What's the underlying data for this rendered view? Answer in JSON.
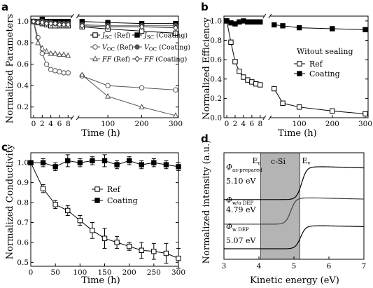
{
  "panels": [
    {
      "id": "a",
      "label": "a",
      "xlabel": "Time (h)",
      "ylabel": "Normalized Parameters",
      "xticks": [
        "0",
        "2",
        "4",
        "6",
        "8",
        "100",
        "200",
        "300"
      ],
      "yticks": [
        "0.2",
        "0.4",
        "0.6",
        "0.8",
        "1.0"
      ],
      "legend": [
        {
          "sym": "J",
          "sub": "SC",
          "tail": " (Ref)",
          "marker": "open-square"
        },
        {
          "sym": "J",
          "sub": "SC",
          "tail": " (Coating)",
          "marker": "filled-square"
        },
        {
          "sym": "V",
          "sub": "OC",
          "tail": " (Ref)",
          "marker": "open-circle"
        },
        {
          "sym": "V",
          "sub": "OC",
          "tail": " (Coating)",
          "marker": "filled-circle"
        },
        {
          "sym": "FF",
          "sub": "",
          "tail": " (Ref)",
          "marker": "open-triangle"
        },
        {
          "sym": "FF",
          "sub": "",
          "tail": " (Coating)",
          "marker": "open-diamond"
        }
      ]
    },
    {
      "id": "b",
      "label": "b",
      "xlabel": "Time (h)",
      "ylabel": "Normalized Efficiency",
      "xticks": [
        "0",
        "2",
        "4",
        "6",
        "8",
        "100",
        "200",
        "300"
      ],
      "yticks": [
        "0.0",
        "0.2",
        "0.4",
        "0.6",
        "0.8",
        "1.0"
      ],
      "legend_title": "Witout sealing",
      "legend": [
        {
          "text": "Ref",
          "marker": "open-square"
        },
        {
          "text": "Coating",
          "marker": "filled-square"
        }
      ]
    },
    {
      "id": "c",
      "label": "c",
      "xlabel": "Time (h)",
      "ylabel": "Normalized Conductivity",
      "xticks": [
        "0",
        "50",
        "100",
        "150",
        "200",
        "250",
        "300"
      ],
      "yticks": [
        "0.5",
        "0.6",
        "0.7",
        "0.8",
        "0.9",
        "1.0"
      ],
      "legend": [
        {
          "text": "Ref",
          "marker": "open-square"
        },
        {
          "text": "Coating",
          "marker": "filled-square"
        }
      ]
    },
    {
      "id": "d",
      "label": "d",
      "xlabel": "Kinetic energy (eV)",
      "ylabel": "Normalized intensity (a.u.)",
      "xticks": [
        "3",
        "4",
        "5",
        "6",
        "7"
      ],
      "band_label": "c-Si",
      "ec_label": "E",
      "ec_sub": "c",
      "ev_label": "E",
      "ev_sub": "v",
      "curves": [
        {
          "phi": "Φ",
          "sub": "as-prepared",
          "value": "5.10 eV"
        },
        {
          "phi": "Φ",
          "sub": "w/o DEP",
          "value": "4.79 eV"
        },
        {
          "phi": "Φ",
          "sub": "w DEP",
          "value": "5.07 eV"
        }
      ]
    }
  ],
  "chart_data": [
    {
      "type": "line",
      "panel": "a",
      "xlabel": "Time (h)",
      "ylabel": "Normalized Parameters",
      "ylim": [
        0.1,
        1.05
      ],
      "x_early": [
        0,
        1,
        2,
        3,
        4,
        5,
        6,
        7,
        8
      ],
      "x_late": [
        24,
        100,
        200,
        300
      ],
      "series": [
        {
          "name": "JSC (Ref)",
          "marker": "open-square",
          "early": [
            1.0,
            0.99,
            0.98,
            0.97,
            0.96,
            0.96,
            0.96,
            0.96,
            0.96
          ],
          "late": [
            0.95,
            0.93,
            0.91,
            0.89
          ]
        },
        {
          "name": "JSC (Coating)",
          "marker": "filled-square",
          "early": [
            1.0,
            1.0,
            1.02,
            1.0,
            1.0,
            1.0,
            1.0,
            1.0,
            1.0
          ],
          "late": [
            1.0,
            0.99,
            0.98,
            0.98
          ]
        },
        {
          "name": "VOC (Ref)",
          "marker": "open-circle",
          "early": [
            1.0,
            0.85,
            0.7,
            0.6,
            0.55,
            0.54,
            0.53,
            0.52,
            0.52
          ],
          "late": [
            0.49,
            0.4,
            0.38,
            0.36
          ]
        },
        {
          "name": "VOC (Coating)",
          "marker": "filled-circle",
          "early": [
            1.0,
            1.0,
            1.0,
            0.99,
            0.99,
            0.98,
            0.98,
            0.98,
            0.98
          ],
          "late": [
            0.97,
            0.96,
            0.96,
            0.96
          ]
        },
        {
          "name": "FF (Ref)",
          "marker": "open-triangle",
          "early": [
            1.0,
            0.8,
            0.75,
            0.72,
            0.7,
            0.7,
            0.69,
            0.69,
            0.68
          ],
          "late": [
            0.5,
            0.3,
            0.2,
            0.12
          ]
        },
        {
          "name": "FF (Coating)",
          "marker": "open-diamond",
          "early": [
            1.0,
            0.99,
            0.99,
            0.98,
            0.98,
            0.98,
            0.97,
            0.97,
            0.97
          ],
          "late": [
            0.96,
            0.95,
            0.95,
            0.94
          ]
        }
      ]
    },
    {
      "type": "line",
      "panel": "b",
      "xlabel": "Time (h)",
      "ylabel": "Normalized Efficiency",
      "ylim": [
        0.0,
        1.05
      ],
      "x_early": [
        0,
        1,
        2,
        3,
        4,
        5,
        6,
        7,
        8
      ],
      "x_late": [
        24,
        50,
        100,
        200,
        300
      ],
      "series": [
        {
          "name": "Ref",
          "marker": "open-square",
          "early": [
            1.0,
            0.78,
            0.58,
            0.48,
            0.42,
            0.39,
            0.37,
            0.35,
            0.34
          ],
          "late": [
            0.3,
            0.15,
            0.11,
            0.07,
            0.04
          ]
        },
        {
          "name": "Coating",
          "marker": "filled-square",
          "early": [
            1.0,
            0.98,
            0.97,
            0.99,
            1.0,
            0.99,
            0.99,
            0.99,
            0.99
          ],
          "late": [
            0.96,
            0.95,
            0.93,
            0.92,
            0.91
          ]
        }
      ]
    },
    {
      "type": "line",
      "panel": "c",
      "xlabel": "Time (h)",
      "ylabel": "Normalized Conductivity",
      "xlim": [
        0,
        300
      ],
      "ylim": [
        0.48,
        1.05
      ],
      "series": [
        {
          "name": "Ref",
          "marker": "open-square",
          "x": [
            0,
            25,
            50,
            75,
            100,
            125,
            150,
            175,
            200,
            225,
            250,
            275,
            300
          ],
          "y": [
            1.0,
            0.87,
            0.79,
            0.76,
            0.71,
            0.66,
            0.62,
            0.6,
            0.58,
            0.56,
            0.555,
            0.545,
            0.52
          ],
          "err": [
            0,
            0.02,
            0.02,
            0.025,
            0.025,
            0.04,
            0.05,
            0.03,
            0.02,
            0.04,
            0.04,
            0.05,
            0.05
          ]
        },
        {
          "name": "Coating",
          "marker": "filled-square",
          "x": [
            0,
            25,
            50,
            75,
            100,
            125,
            150,
            175,
            200,
            225,
            250,
            275,
            300
          ],
          "y": [
            1.0,
            1.0,
            0.98,
            1.01,
            1.0,
            1.01,
            1.01,
            0.99,
            1.01,
            0.99,
            1.0,
            0.99,
            0.98
          ],
          "err": [
            0,
            0.02,
            0.02,
            0.03,
            0.02,
            0.02,
            0.03,
            0.02,
            0.02,
            0.02,
            0.02,
            0.02,
            0.02
          ]
        }
      ]
    },
    {
      "type": "line",
      "panel": "d",
      "xlabel": "Kinetic energy (eV)",
      "ylabel": "Normalized intensity (a.u.)",
      "xlim": [
        3,
        7
      ],
      "band": [
        4.05,
        5.17
      ],
      "series": [
        {
          "name": "as-prepared",
          "edge": 5.1,
          "low": 0.6,
          "high": 1.0
        },
        {
          "name": "w/o DEP",
          "edge": 4.79,
          "low": 0.3,
          "high": 0.62
        },
        {
          "name": "w DEP",
          "edge": 5.07,
          "low": 0.0,
          "high": 0.28
        }
      ]
    }
  ]
}
